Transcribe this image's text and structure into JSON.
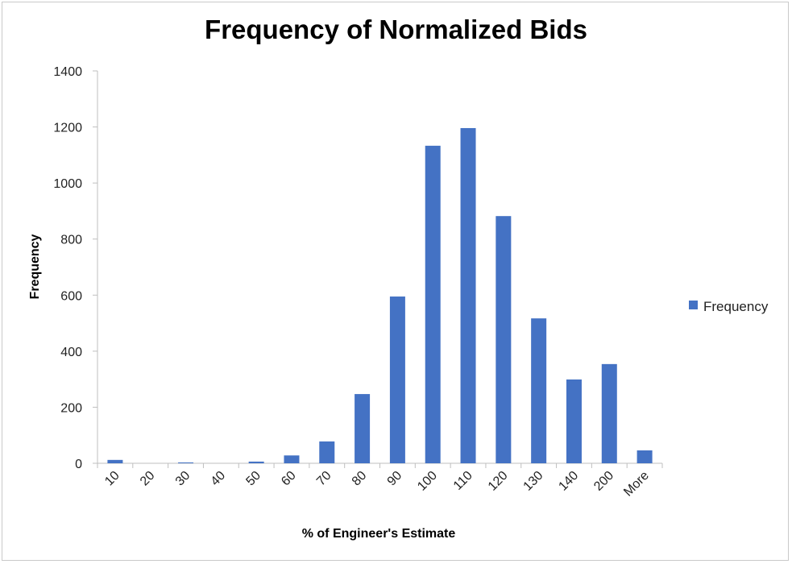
{
  "chart_data": {
    "type": "bar",
    "title": "Frequency of Normalized Bids",
    "xlabel": "% of Engineer's Estimate",
    "ylabel": "Frequency",
    "categories": [
      "10",
      "20",
      "30",
      "40",
      "50",
      "60",
      "70",
      "80",
      "90",
      "100",
      "110",
      "120",
      "130",
      "140",
      "200",
      "More"
    ],
    "series": [
      {
        "name": "Frequency",
        "color": "#4472C4",
        "values": [
          12,
          0,
          3,
          0,
          6,
          28,
          78,
          247,
          595,
          1133,
          1196,
          882,
          517,
          299,
          354,
          46
        ]
      }
    ],
    "ylim": [
      0,
      1400
    ],
    "yticks": [
      0,
      200,
      400,
      600,
      800,
      1000,
      1200,
      1400
    ],
    "grid": false,
    "legend_position": "right"
  }
}
